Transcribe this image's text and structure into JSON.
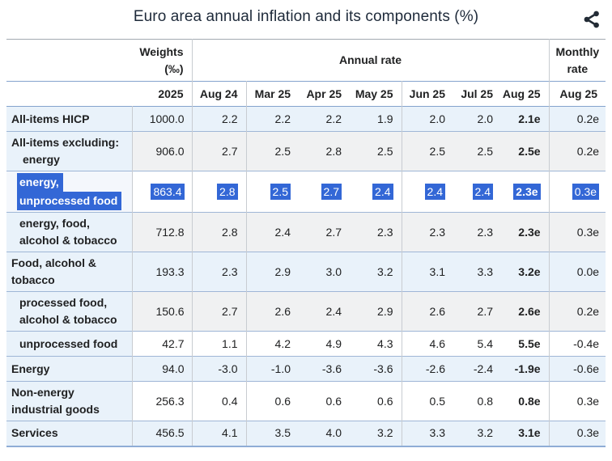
{
  "title": "Euro area annual inflation and its components (%)",
  "colors": {
    "selection_blue": "#3367d6",
    "row_blue": "#e9f2fa",
    "row_gray": "#f0f1f2",
    "row_white": "#ffffff",
    "border_blue": "#84a3cd",
    "border_gray": "#c8ccd1",
    "icon_dark": "#222b35"
  },
  "table": {
    "header": {
      "weights_lines": [
        "Weights",
        "(‰)"
      ],
      "annual_rate_label": "Annual rate",
      "monthly_rate_lines": [
        "Monthly",
        "rate"
      ],
      "year": "2025",
      "month_columns": [
        "Aug 24",
        "Mar 25",
        "Apr 25",
        "May 25",
        "Jun 25",
        "Jul 25",
        "Aug 25"
      ],
      "monthly_column": "Aug 25"
    },
    "rows": [
      {
        "label_lines": [
          "All-items HICP"
        ],
        "indent": 0,
        "line2_extra_indent": false,
        "weight": "1000.0",
        "annual": [
          "2.2",
          "2.2",
          "2.2",
          "1.9",
          "2.0",
          "2.0",
          "2.1e"
        ],
        "monthly": "0.2e",
        "bg": "blue",
        "selected": false
      },
      {
        "label_lines": [
          "All-items excluding:",
          "energy"
        ],
        "indent": 0,
        "line2_extra_indent": true,
        "weight": "906.0",
        "annual": [
          "2.7",
          "2.5",
          "2.8",
          "2.5",
          "2.5",
          "2.5",
          "2.5e"
        ],
        "monthly": "0.2e",
        "bg": "gray",
        "selected": false
      },
      {
        "label_lines": [
          "energy,",
          "unprocessed food"
        ],
        "indent": 1,
        "line2_extra_indent": false,
        "weight": "863.4",
        "annual": [
          "2.8",
          "2.5",
          "2.7",
          "2.4",
          "2.4",
          "2.4",
          "2.3e"
        ],
        "monthly": "0.3e",
        "bg": "white",
        "selected": true
      },
      {
        "label_lines": [
          "energy, food,",
          "alcohol & tobacco"
        ],
        "indent": 1,
        "line2_extra_indent": false,
        "weight": "712.8",
        "annual": [
          "2.8",
          "2.4",
          "2.7",
          "2.3",
          "2.3",
          "2.3",
          "2.3e"
        ],
        "monthly": "0.3e",
        "bg": "gray",
        "selected": false
      },
      {
        "label_lines": [
          "Food, alcohol &",
          "tobacco"
        ],
        "indent": 0,
        "line2_extra_indent": false,
        "weight": "193.3",
        "annual": [
          "2.3",
          "2.9",
          "3.0",
          "3.2",
          "3.1",
          "3.3",
          "3.2e"
        ],
        "monthly": "0.0e",
        "bg": "blue",
        "selected": false
      },
      {
        "label_lines": [
          "processed food,",
          "alcohol & tobacco"
        ],
        "indent": 1,
        "line2_extra_indent": false,
        "weight": "150.6",
        "annual": [
          "2.7",
          "2.6",
          "2.4",
          "2.9",
          "2.6",
          "2.7",
          "2.6e"
        ],
        "monthly": "0.2e",
        "bg": "gray",
        "selected": false
      },
      {
        "label_lines": [
          "unprocessed food"
        ],
        "indent": 1,
        "line2_extra_indent": false,
        "weight": "42.7",
        "annual": [
          "1.1",
          "4.2",
          "4.9",
          "4.3",
          "4.6",
          "5.4",
          "5.5e"
        ],
        "monthly": "-0.4e",
        "bg": "white",
        "selected": false
      },
      {
        "label_lines": [
          "Energy"
        ],
        "indent": 0,
        "line2_extra_indent": false,
        "weight": "94.0",
        "annual": [
          "-3.0",
          "-1.0",
          "-3.6",
          "-3.6",
          "-2.6",
          "-2.4",
          "-1.9e"
        ],
        "monthly": "-0.6e",
        "bg": "blue",
        "selected": false
      },
      {
        "label_lines": [
          "Non-energy",
          "industrial goods"
        ],
        "indent": 0,
        "line2_extra_indent": false,
        "weight": "256.3",
        "annual": [
          "0.4",
          "0.6",
          "0.6",
          "0.6",
          "0.5",
          "0.8",
          "0.8e"
        ],
        "monthly": "0.3e",
        "bg": "white",
        "selected": false
      },
      {
        "label_lines": [
          "Services"
        ],
        "indent": 0,
        "line2_extra_indent": false,
        "weight": "456.5",
        "annual": [
          "4.1",
          "3.5",
          "4.0",
          "3.2",
          "3.3",
          "3.2",
          "3.1e"
        ],
        "monthly": "0.3e",
        "bg": "blue",
        "selected": false
      }
    ]
  }
}
